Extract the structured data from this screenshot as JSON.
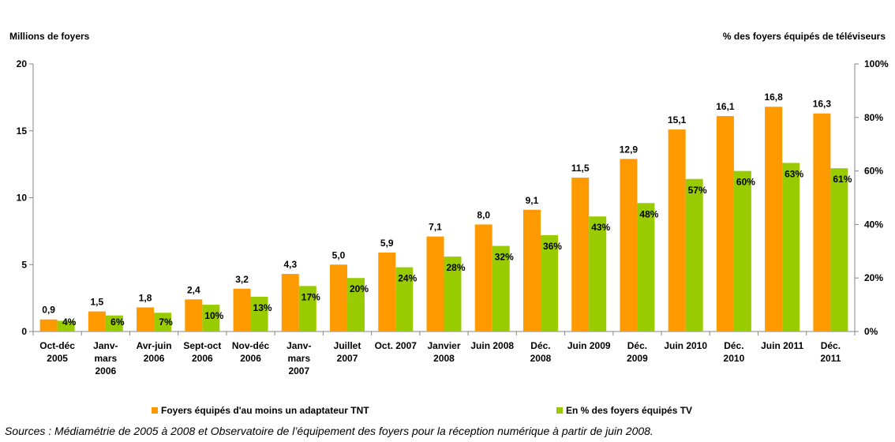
{
  "chart_data": {
    "type": "bar",
    "categories": [
      [
        "Oct-déc",
        "2005"
      ],
      [
        "Janv-",
        "mars",
        "2006"
      ],
      [
        "Avr-juin",
        "2006"
      ],
      [
        "Sept-oct",
        "2006"
      ],
      [
        "Nov-déc",
        "2006"
      ],
      [
        "Janv-",
        "mars",
        "2007"
      ],
      [
        "Juillet",
        "2007"
      ],
      [
        "Oct. 2007"
      ],
      [
        "Janvier",
        "2008"
      ],
      [
        "Juin 2008"
      ],
      [
        "Déc.",
        "2008"
      ],
      [
        "Juin 2009"
      ],
      [
        "Déc.",
        "2009"
      ],
      [
        "Juin 2010"
      ],
      [
        "Déc.",
        "2010"
      ],
      [
        "Juin 2011"
      ],
      [
        "Déc.",
        "2011"
      ]
    ],
    "series": [
      {
        "name": "Foyers équipés d'au moins un adaptateur TNT",
        "axis": "left",
        "color": "#FF9900",
        "values": [
          0.9,
          1.5,
          1.8,
          2.4,
          3.2,
          4.3,
          5.0,
          5.9,
          7.1,
          8.0,
          9.1,
          11.5,
          12.9,
          15.1,
          16.1,
          16.8,
          16.3
        ],
        "labels": [
          "0,9",
          "1,5",
          "1,8",
          "2,4",
          "3,2",
          "4,3",
          "5,0",
          "5,9",
          "7,1",
          "8,0",
          "9,1",
          "11,5",
          "12,9",
          "15,1",
          "16,1",
          "16,8",
          "16,3"
        ]
      },
      {
        "name": "En % des foyers équipés TV",
        "axis": "right",
        "color": "#99CC00",
        "values": [
          4,
          6,
          7,
          10,
          13,
          17,
          20,
          24,
          28,
          32,
          36,
          43,
          48,
          57,
          60,
          63,
          61
        ],
        "labels": [
          "4%",
          "6%",
          "7%",
          "10%",
          "13%",
          "17%",
          "20%",
          "24%",
          "28%",
          "32%",
          "36%",
          "43%",
          "48%",
          "57%",
          "60%",
          "63%",
          "61%"
        ]
      }
    ],
    "ylabel_left": "Millions de foyers",
    "ylabel_right": "% des foyers équipés de téléviseurs",
    "ylim_left": [
      0,
      20
    ],
    "yticks_left": [
      "0",
      "5",
      "10",
      "15",
      "20"
    ],
    "ylim_right": [
      0,
      100
    ],
    "yticks_right": [
      "0%",
      "20%",
      "40%",
      "60%",
      "80%",
      "100%"
    ],
    "grid": false,
    "legend_position": "bottom"
  },
  "source": "Sources : Médiamétrie de 2005 à 2008 et Observatoire de l’équipement des foyers pour la réception numérique à partir de juin 2008."
}
